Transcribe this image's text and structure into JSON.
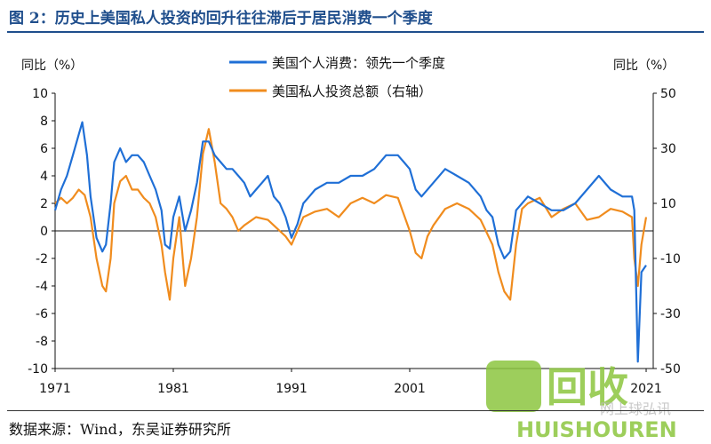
{
  "header": {
    "title": "图 2：历史上美国私人投资的回升往往滞后于居民消费一个季度"
  },
  "footer": {
    "source": "数据来源：Wind，东吴证券研究所"
  },
  "watermark": {
    "logo_text": "回收",
    "sub_text": "HUISHOUREN",
    "site_text": "网上球弘讯",
    "color": "#8cc63f"
  },
  "chart_data": {
    "type": "line",
    "left_axis": {
      "label": "同比（%）",
      "ylim": [
        -10,
        10
      ],
      "ticks": [
        "10",
        "8",
        "6",
        "4",
        "2",
        "0",
        "-2",
        "-4",
        "-6",
        "-8",
        "-10"
      ]
    },
    "right_axis": {
      "label": "同比（%）",
      "ylim": [
        -50,
        50
      ],
      "ticks": [
        "50",
        "30",
        "10",
        "-10",
        "-30",
        "-50"
      ]
    },
    "x_ticks": [
      "1971",
      "1981",
      "1991",
      "2001",
      "2021"
    ],
    "legend_position": "top-center",
    "series": [
      {
        "name": "美国个人消费：领先一个季度",
        "axis": "left",
        "color": "#1f6fd6",
        "x": [
          1971.0,
          1971.5,
          1972.0,
          1972.5,
          1973.0,
          1973.3,
          1973.7,
          1974.0,
          1974.5,
          1975.0,
          1975.3,
          1975.7,
          1976.0,
          1976.5,
          1977.0,
          1977.5,
          1978.0,
          1978.5,
          1979.0,
          1979.5,
          1980.0,
          1980.3,
          1980.7,
          1981.0,
          1981.5,
          1982.0,
          1982.5,
          1983.0,
          1983.5,
          1984.0,
          1984.5,
          1985.0,
          1985.5,
          1986.0,
          1986.5,
          1987.0,
          1987.5,
          1988.0,
          1988.5,
          1989.0,
          1989.5,
          1990.0,
          1990.5,
          1991.0,
          1991.5,
          1992.0,
          1992.5,
          1993.0,
          1994.0,
          1995.0,
          1996.0,
          1997.0,
          1998.0,
          1999.0,
          2000.0,
          2000.5,
          2001.0,
          2001.5,
          2002.0,
          2003.0,
          2004.0,
          2005.0,
          2006.0,
          2007.0,
          2007.5,
          2008.0,
          2008.5,
          2009.0,
          2009.5,
          2010.0,
          2011.0,
          2012.0,
          2013.0,
          2014.0,
          2015.0,
          2016.0,
          2017.0,
          2018.0,
          2019.0,
          2019.8,
          2020.0,
          2020.3,
          2020.6,
          2021.0
        ],
        "y": [
          1.5,
          3.0,
          4.0,
          5.5,
          7.0,
          7.9,
          5.5,
          2.5,
          -0.5,
          -1.5,
          -1.0,
          2.0,
          5.0,
          6.0,
          5.0,
          5.5,
          5.5,
          5.0,
          4.0,
          3.0,
          1.5,
          -1.0,
          -1.3,
          1.0,
          2.5,
          0.0,
          1.5,
          3.5,
          6.5,
          6.5,
          5.5,
          5.0,
          4.5,
          4.5,
          4.0,
          3.5,
          2.5,
          3.0,
          3.5,
          4.0,
          2.5,
          2.0,
          1.0,
          -0.5,
          0.5,
          2.0,
          2.5,
          3.0,
          3.5,
          3.5,
          4.0,
          4.0,
          4.5,
          5.5,
          5.5,
          5.0,
          4.5,
          3.0,
          2.5,
          3.5,
          4.5,
          4.0,
          3.5,
          2.5,
          1.5,
          1.0,
          -1.0,
          -2.0,
          -1.5,
          1.5,
          2.5,
          2.0,
          1.5,
          1.5,
          2.0,
          3.0,
          4.0,
          3.0,
          2.5,
          2.5,
          1.5,
          -9.5,
          -3.0,
          -2.5
        ]
      },
      {
        "name": "美国私人投资总额（右轴）",
        "axis": "right",
        "color": "#f08c1e",
        "x": [
          1971.0,
          1971.5,
          1972.0,
          1972.5,
          1973.0,
          1973.5,
          1974.0,
          1974.5,
          1975.0,
          1975.3,
          1975.7,
          1976.0,
          1976.5,
          1977.0,
          1977.5,
          1978.0,
          1978.5,
          1979.0,
          1979.5,
          1980.0,
          1980.3,
          1980.7,
          1981.0,
          1981.5,
          1982.0,
          1982.5,
          1983.0,
          1983.5,
          1984.0,
          1984.5,
          1985.0,
          1985.5,
          1986.0,
          1986.5,
          1987.0,
          1988.0,
          1989.0,
          1989.5,
          1990.0,
          1990.5,
          1991.0,
          1991.5,
          1992.0,
          1993.0,
          1994.0,
          1995.0,
          1996.0,
          1997.0,
          1998.0,
          1999.0,
          2000.0,
          2001.0,
          2001.5,
          2002.0,
          2002.5,
          2003.0,
          2004.0,
          2005.0,
          2006.0,
          2007.0,
          2008.0,
          2008.5,
          2009.0,
          2009.5,
          2010.0,
          2010.5,
          2011.0,
          2012.0,
          2013.0,
          2014.0,
          2015.0,
          2016.0,
          2017.0,
          2018.0,
          2019.0,
          2019.8,
          2020.0,
          2020.3,
          2020.6,
          2021.0
        ],
        "y": [
          10,
          12,
          10,
          12,
          15,
          13,
          5,
          -10,
          -20,
          -22,
          -10,
          10,
          18,
          20,
          15,
          15,
          12,
          10,
          5,
          -5,
          -15,
          -25,
          -10,
          5,
          -20,
          -10,
          5,
          28,
          37,
          25,
          10,
          8,
          5,
          0,
          2,
          5,
          4,
          2,
          0,
          -2,
          -5,
          0,
          5,
          7,
          8,
          5,
          10,
          12,
          10,
          13,
          12,
          0,
          -8,
          -10,
          -2,
          2,
          8,
          10,
          8,
          4,
          -5,
          -15,
          -22,
          -25,
          -5,
          8,
          10,
          12,
          5,
          8,
          10,
          4,
          5,
          8,
          7,
          5,
          -10,
          -20,
          -5,
          5
        ]
      }
    ]
  }
}
